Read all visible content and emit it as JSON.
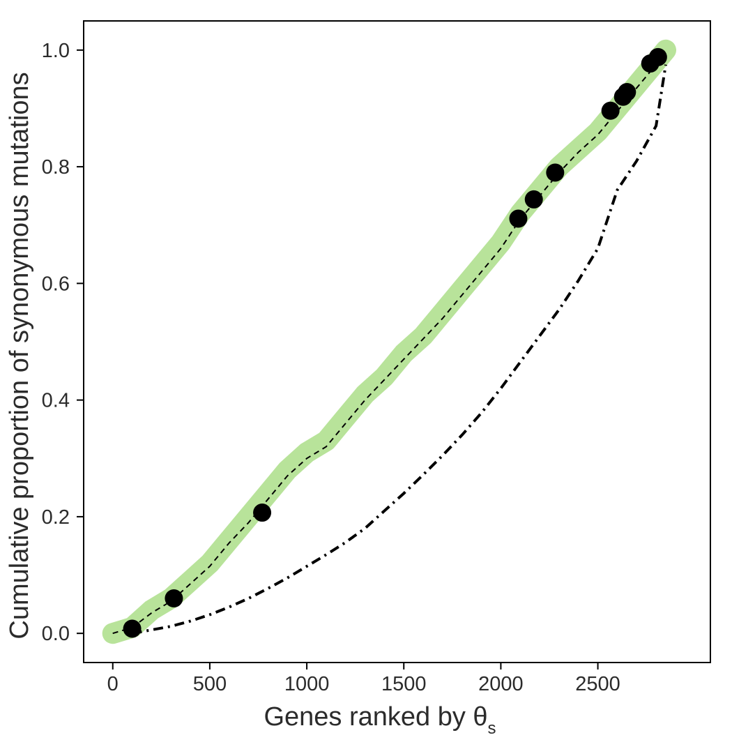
{
  "chart_data": {
    "type": "line",
    "title": "",
    "xlabel": "Genes ranked by θ",
    "xlabel_subscript": "s",
    "ylabel": "Cumulative proportion of synonymous mutations",
    "xlim": [
      -150,
      3080
    ],
    "ylim": [
      -0.05,
      1.05
    ],
    "x_ticks": [
      0,
      500,
      1000,
      1500,
      2000,
      2500
    ],
    "x_tick_labels": [
      "0",
      "500",
      "1000",
      "1500",
      "2000",
      "2500"
    ],
    "y_ticks": [
      0.0,
      0.2,
      0.4,
      0.6,
      0.8,
      1.0
    ],
    "y_tick_labels": [
      "0.0",
      "0.2",
      "0.4",
      "0.6",
      "0.8",
      "1.0"
    ],
    "grid": false,
    "legend": "none",
    "series": [
      {
        "style": "thick-band",
        "color": "#b8e39a",
        "x": [
          0,
          100,
          200,
          300,
          400,
          500,
          600,
          700,
          800,
          900,
          1000,
          1100,
          1200,
          1300,
          1400,
          1500,
          1600,
          1700,
          1800,
          1900,
          2000,
          2100,
          2200,
          2300,
          2400,
          2500,
          2600,
          2700,
          2800,
          2850
        ],
        "values": [
          0.0,
          0.01,
          0.04,
          0.06,
          0.09,
          0.12,
          0.16,
          0.2,
          0.24,
          0.28,
          0.31,
          0.33,
          0.37,
          0.41,
          0.44,
          0.48,
          0.51,
          0.55,
          0.59,
          0.63,
          0.67,
          0.72,
          0.76,
          0.8,
          0.83,
          0.86,
          0.9,
          0.94,
          0.98,
          1.0
        ]
      },
      {
        "style": "dashed",
        "color": "#000000",
        "x": [
          0,
          100,
          200,
          300,
          400,
          500,
          600,
          700,
          800,
          900,
          1000,
          1100,
          1200,
          1300,
          1400,
          1500,
          1600,
          1700,
          1800,
          1900,
          2000,
          2100,
          2200,
          2300,
          2400,
          2500,
          2600,
          2700,
          2800,
          2850
        ],
        "values": [
          0.0,
          0.01,
          0.035,
          0.055,
          0.085,
          0.115,
          0.155,
          0.19,
          0.23,
          0.27,
          0.3,
          0.32,
          0.36,
          0.4,
          0.435,
          0.47,
          0.505,
          0.54,
          0.58,
          0.62,
          0.66,
          0.71,
          0.75,
          0.79,
          0.825,
          0.855,
          0.895,
          0.935,
          0.975,
          0.99
        ]
      },
      {
        "style": "dot-dash",
        "color": "#000000",
        "x": [
          100,
          200,
          300,
          400,
          500,
          600,
          700,
          800,
          900,
          1000,
          1100,
          1200,
          1300,
          1400,
          1500,
          1600,
          1700,
          1800,
          1900,
          2000,
          2100,
          2200,
          2300,
          2400,
          2500,
          2550,
          2600,
          2700,
          2800,
          2850
        ],
        "values": [
          0.0,
          0.006,
          0.012,
          0.021,
          0.032,
          0.045,
          0.06,
          0.077,
          0.095,
          0.115,
          0.135,
          0.156,
          0.18,
          0.21,
          0.24,
          0.272,
          0.305,
          0.34,
          0.378,
          0.42,
          0.465,
          0.51,
          0.555,
          0.605,
          0.66,
          0.71,
          0.76,
          0.81,
          0.87,
          0.975
        ]
      },
      {
        "style": "points",
        "color": "#000000",
        "x": [
          100,
          315,
          770,
          2090,
          2170,
          2280,
          2565,
          2630,
          2650,
          2770,
          2810
        ],
        "values": [
          0.008,
          0.06,
          0.207,
          0.711,
          0.744,
          0.79,
          0.896,
          0.92,
          0.928,
          0.977,
          0.988
        ]
      }
    ]
  }
}
